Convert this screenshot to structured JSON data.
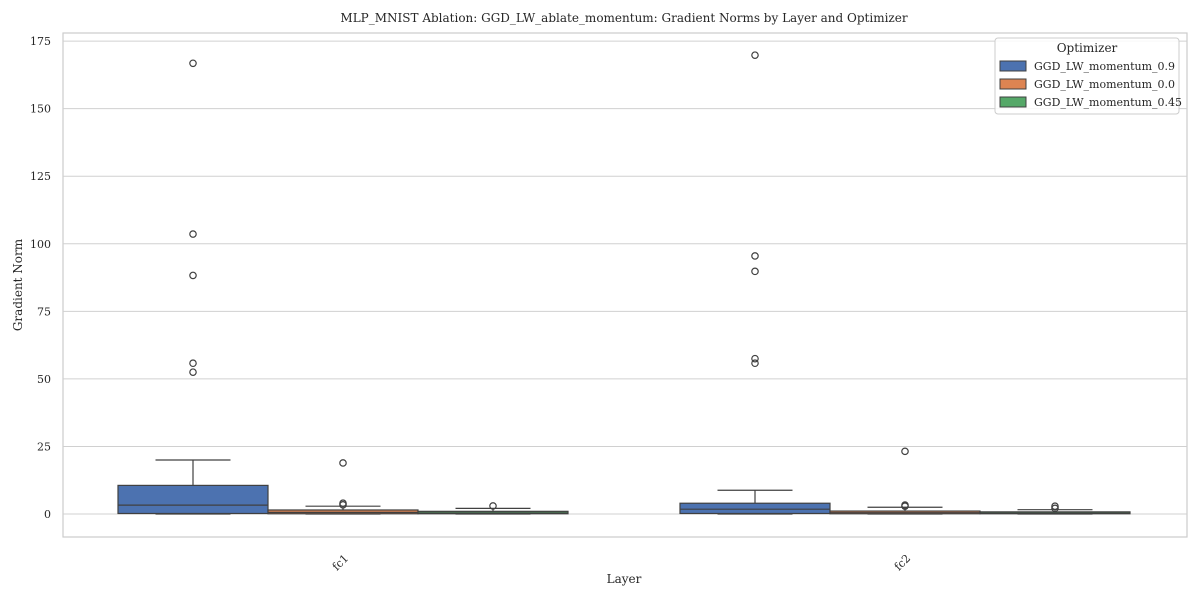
{
  "chart_data": {
    "type": "box",
    "title": "MLP_MNIST Ablation: GGD_LW_ablate_momentum: Gradient Norms by Layer and Optimizer",
    "xlabel": "Layer",
    "ylabel": "Gradient Norm",
    "ylim": [
      -8.5,
      178
    ],
    "yticks": [
      0,
      25,
      50,
      75,
      100,
      125,
      150,
      175
    ],
    "grid": true,
    "legend": {
      "title": "Optimizer",
      "placement": "top-right"
    },
    "categories": [
      "fc1",
      "fc2"
    ],
    "series": [
      {
        "name": "GGD_LW_momentum_0.9",
        "color": "#4c72b0",
        "boxes": [
          {
            "whislo": 0,
            "q1": 0.2,
            "med": 3.3,
            "q3": 10.6,
            "whishi": 20,
            "fliers": [
              52.5,
              55.8,
              88.3,
              103.6,
              166.8
            ]
          },
          {
            "whislo": 0,
            "q1": 0.2,
            "med": 1.8,
            "q3": 4.0,
            "whishi": 8.8,
            "fliers": [
              55.8,
              57.5,
              89.8,
              95.5,
              169.8
            ]
          }
        ]
      },
      {
        "name": "GGD_LW_momentum_0.0",
        "color": "#dd8452",
        "boxes": [
          {
            "whislo": 0,
            "q1": 0.1,
            "med": 0.6,
            "q3": 1.5,
            "whishi": 2.9,
            "fliers": [
              3.4,
              4.0,
              18.9
            ]
          },
          {
            "whislo": 0,
            "q1": 0.1,
            "med": 0.5,
            "q3": 1.1,
            "whishi": 2.5,
            "fliers": [
              2.9,
              3.3,
              23.2
            ]
          }
        ]
      },
      {
        "name": "GGD_LW_momentum_0.45",
        "color": "#55a868",
        "boxes": [
          {
            "whislo": 0,
            "q1": 0.1,
            "med": 0.4,
            "q3": 1.0,
            "whishi": 2.1,
            "fliers": [
              3.0
            ]
          },
          {
            "whislo": 0,
            "q1": 0.1,
            "med": 0.3,
            "q3": 0.8,
            "whishi": 1.6,
            "fliers": [
              2.1,
              2.9
            ]
          }
        ]
      }
    ]
  }
}
